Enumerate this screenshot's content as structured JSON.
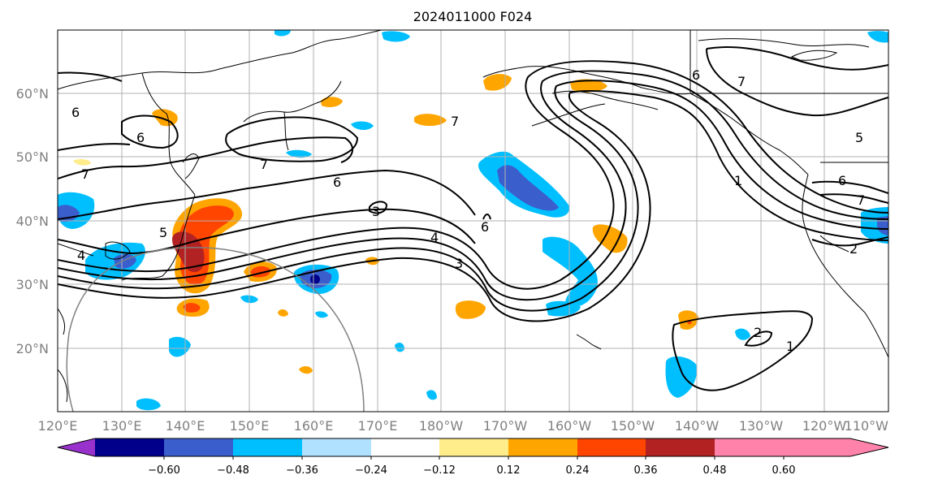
{
  "title": "2024011000 F024",
  "map": {
    "lat_labels": [
      "60°N",
      "50°N",
      "40°N",
      "30°N",
      "20°N"
    ],
    "lon_labels": [
      "120°E",
      "130°E",
      "140°E",
      "150°E",
      "160°E",
      "170°E",
      "180°W",
      "170°W",
      "160°W",
      "150°W",
      "140°W",
      "130°W",
      "120°W",
      "110°W"
    ],
    "contour_labels": [
      "6",
      "6",
      "7",
      "7",
      "6",
      "3",
      "4",
      "5",
      "4",
      "3",
      "6",
      "7",
      "6",
      "7",
      "1",
      "5",
      "6",
      "7",
      "2",
      "2",
      "1"
    ],
    "gridline_color": "#b0b0b0"
  },
  "colorbar": {
    "tick_labels": [
      "−0.60",
      "−0.48",
      "−0.36",
      "−0.24",
      "−0.12",
      "0.12",
      "0.24",
      "0.36",
      "0.48",
      "0.60"
    ],
    "colors": [
      "#9932CC",
      "#00008B",
      "#3A5FCD",
      "#00BFFF",
      "#B0E2FF",
      "#FFFFFF",
      "#FFEC8B",
      "#FFA500",
      "#FF4500",
      "#B22222",
      "#FF82AB"
    ]
  }
}
